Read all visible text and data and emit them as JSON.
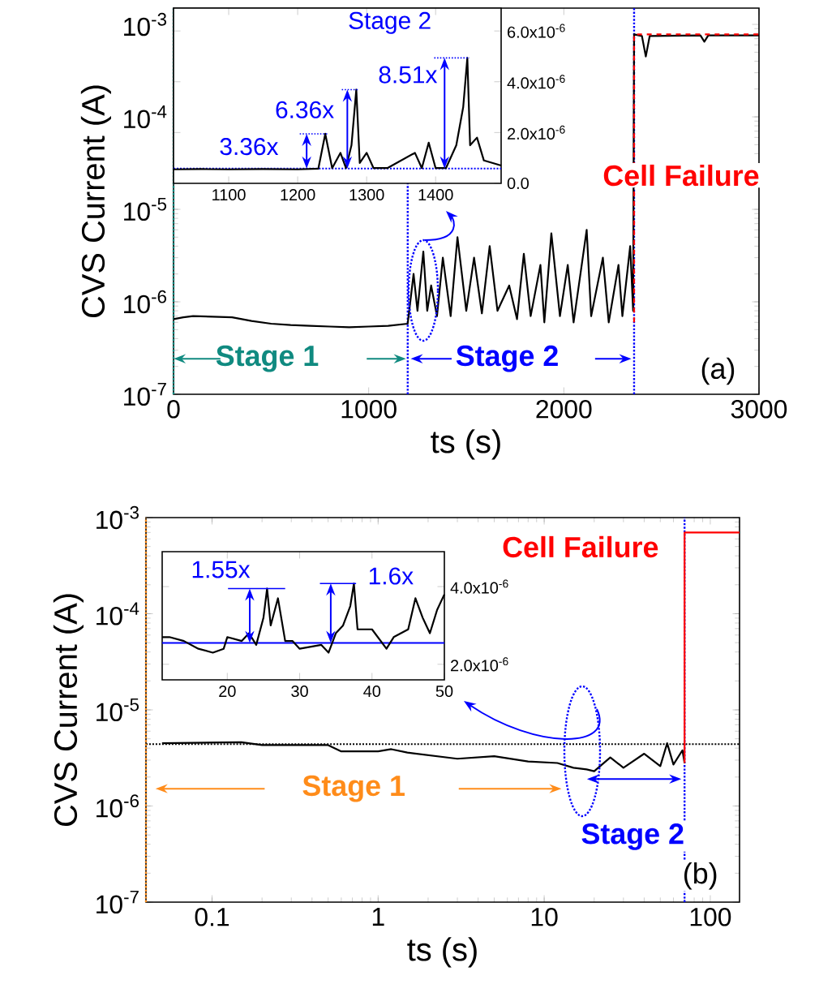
{
  "chart_data": [
    {
      "type": "line",
      "xlabel": "ts (s)",
      "ylabel": "CVS Current (A)",
      "log": "y",
      "xlim": [
        0,
        3000
      ],
      "ylim": [
        1e-07,
        0.0015
      ],
      "xticks": [
        0,
        1000,
        2000,
        3000
      ],
      "yticks": [
        {
          "value": 1e-07,
          "label": "10$^{-7}$"
        },
        {
          "value": 1e-06,
          "label": "10$^{-6}$"
        },
        {
          "value": 1e-05,
          "label": "10$^{-5}$"
        },
        {
          "value": 0.0001,
          "label": "10$^{-4}$"
        },
        {
          "value": 0.001,
          "label": "10$^{-3}$"
        }
      ],
      "series": [
        {
          "color": "#000000",
          "x": [
            0,
            50,
            100,
            200,
            300,
            400,
            500,
            600,
            700,
            800,
            900,
            1000,
            1100,
            1200,
            1230,
            1250,
            1280,
            1300,
            1320,
            1350,
            1380,
            1420,
            1455,
            1500,
            1540,
            1580,
            1620,
            1660,
            1720,
            1760,
            1795,
            1830,
            1880,
            1900,
            1936,
            1980,
            2020,
            2050,
            2117,
            2140,
            2200,
            2230,
            2280,
            2300,
            2340,
            2355,
            2360,
            2400,
            2420,
            2440,
            2700,
            2720,
            2740,
            3000
          ],
          "values": [
            6.5e-07,
            6.8e-07,
            7e-07,
            6.9e-07,
            6.8e-07,
            6.2e-07,
            5.8e-07,
            5.6e-07,
            5.5e-07,
            5.4e-07,
            5.3e-07,
            5.4e-07,
            5.5e-07,
            5.8e-07,
            2e-06,
            8e-07,
            3.5e-06,
            8e-07,
            1.5e-06,
            7e-07,
            3e-06,
            7e-07,
            5e-06,
            8e-07,
            3e-06,
            7.5e-07,
            4e-06,
            8e-07,
            1.5e-06,
            6.5e-07,
            3.3e-06,
            7e-07,
            2.5e-06,
            6e-07,
            5.5e-06,
            7e-07,
            2.5e-06,
            6e-07,
            6e-06,
            7e-07,
            3e-06,
            6e-07,
            2.5e-06,
            7e-07,
            4e-06,
            8e-07,
            0.00078,
            0.00075,
            0.00045,
            0.00075,
            0.00076,
            0.00065,
            0.00076,
            0.00076
          ]
        },
        {
          "color": "#ff0000",
          "line_style": "dashed",
          "x": [
            2360,
            2360,
            3000
          ],
          "values": [
            6e-07,
            0.00078,
            0.00078
          ]
        }
      ],
      "ref_lines": [
        {
          "axis": "x",
          "value": 0,
          "color": "#108a80",
          "line_style": "dotted"
        },
        {
          "axis": "x",
          "value": 1200,
          "color": "#0000ff",
          "line_style": "dotted"
        },
        {
          "axis": "x",
          "value": 2360,
          "color": "#0000ff",
          "line_style": "dotted"
        }
      ],
      "annotations": [
        "Stage 1",
        "Stage 2",
        "Cell Failure",
        "(a)"
      ]
    },
    {
      "type": "line",
      "xlim": [
        1020,
        1495
      ],
      "ylim": [
        0,
        6.9e-06
      ],
      "xticks": [
        1100,
        1200,
        1300,
        1400
      ],
      "yticks": [
        {
          "value": 0,
          "label": "0.0"
        },
        {
          "value": 2e-06,
          "label": "2.0x10$^{-6}$"
        },
        {
          "value": 4e-06,
          "label": "4.0x10$^{-6}$"
        },
        {
          "value": 6e-06,
          "label": "6.0x10$^{-6}$"
        }
      ],
      "series": [
        {
          "color": "#000000",
          "x": [
            1020,
            1060,
            1100,
            1150,
            1200,
            1230,
            1240,
            1250,
            1262,
            1270,
            1278,
            1285,
            1290,
            1300,
            1310,
            1330,
            1370,
            1380,
            1390,
            1400,
            1415,
            1430,
            1440,
            1446,
            1450,
            1460,
            1470,
            1495
          ],
          "values": [
            5.5e-07,
            5.6e-07,
            5.5e-07,
            5.6e-07,
            5.5e-07,
            5.8e-07,
            1.95e-06,
            6e-07,
            1.2e-06,
            6e-07,
            1.5e-06,
            3.69e-06,
            8e-07,
            1.2e-06,
            6e-07,
            6e-07,
            1.2e-06,
            6e-07,
            1.6e-06,
            6e-07,
            6e-07,
            1.5e-06,
            3e-06,
            4.94e-06,
            1.5e-06,
            1.8e-06,
            9e-07,
            7e-07
          ]
        }
      ],
      "ref_lines": [
        {
          "axis": "y",
          "value": 5.8e-07,
          "color": "#0000ff",
          "line_style": "dotted"
        }
      ],
      "title": "Stage 2",
      "annotations": [
        {
          "text": "3.36x",
          "x": 1240,
          "y": 1.95e-06
        },
        {
          "text": "6.36x",
          "x": 1285,
          "y": 3.69e-06
        },
        {
          "text": "8.51x",
          "x": 1446,
          "y": 4.94e-06
        }
      ]
    },
    {
      "type": "line",
      "xlabel": "ts (s)",
      "ylabel": "CVS Current (A)",
      "log": "xy",
      "xlim": [
        0.04,
        150
      ],
      "ylim": [
        1e-07,
        0.001
      ],
      "xticks": [
        0.1,
        1,
        10,
        100
      ],
      "yticks": [
        {
          "value": 1e-07,
          "label": "10$^{-7}$"
        },
        {
          "value": 1e-06,
          "label": "10$^{-6}$"
        },
        {
          "value": 1e-05,
          "label": "10$^{-5}$"
        },
        {
          "value": 0.0001,
          "label": "10$^{-4}$"
        },
        {
          "value": 0.001,
          "label": "10$^{-3}$"
        }
      ],
      "series": [
        {
          "color": "#000000",
          "x": [
            0.05,
            0.15,
            0.2,
            0.5,
            0.6,
            1,
            1.2,
            1.5,
            3,
            5,
            8,
            12,
            15,
            18,
            20,
            25,
            30,
            40,
            50,
            55,
            60,
            68,
            70
          ],
          "values": [
            4.5e-06,
            4.6e-06,
            4.3e-06,
            4.3e-06,
            3.7e-06,
            3.7e-06,
            3.9e-06,
            3.6e-06,
            3.1e-06,
            3.3e-06,
            2.9e-06,
            2.8e-06,
            2.5e-06,
            2.4e-06,
            2.3e-06,
            3.2e-06,
            2.5e-06,
            3.5e-06,
            2.6e-06,
            4.5e-06,
            2.7e-06,
            3.8e-06,
            2.8e-06
          ]
        },
        {
          "color": "#ff0000",
          "x": [
            70,
            70,
            150
          ],
          "values": [
            2.8e-06,
            0.0007,
            0.0007
          ]
        }
      ],
      "ref_lines": [
        {
          "axis": "y",
          "value": 4.4e-06,
          "color": "#000000",
          "line_style": "dotted"
        },
        {
          "axis": "x",
          "value": 0.04,
          "color": "#ff8c1a",
          "line_style": "dotted"
        },
        {
          "axis": "x",
          "value": 70,
          "color": "#0000ff",
          "line_style": "dotted"
        }
      ],
      "annotations": [
        "Stage 1",
        "Stage 2",
        "Cell Failure",
        "(b)"
      ]
    },
    {
      "type": "line",
      "xlim": [
        11,
        50
      ],
      "ylim": [
        1.6e-06,
        4.9e-06
      ],
      "xticks": [
        20,
        30,
        40,
        50
      ],
      "yticks": [
        {
          "value": 2e-06,
          "label": "2.0x10$^{-6}$"
        },
        {
          "value": 4e-06,
          "label": "4.0x10$^{-6}$"
        }
      ],
      "series": [
        {
          "color": "#000000",
          "x": [
            11,
            12,
            14,
            16,
            18,
            19.5,
            20,
            22,
            23,
            24,
            25,
            25.5,
            26,
            27,
            28,
            29,
            30,
            33,
            34,
            35,
            36,
            37,
            37.5,
            38,
            40,
            42,
            43,
            45,
            46,
            47,
            48,
            49,
            50
          ],
          "values": [
            2.7e-06,
            2.7e-06,
            2.6e-06,
            2.4e-06,
            2.3e-06,
            2.4e-06,
            2.7e-06,
            2.6e-06,
            2.8e-06,
            2.5e-06,
            3.2e-06,
            3.95e-06,
            3e-06,
            3.7e-06,
            2.6e-06,
            2.6e-06,
            2.4e-06,
            2.5e-06,
            2.3e-06,
            2.8e-06,
            3e-06,
            3.5e-06,
            4.08e-06,
            2.9e-06,
            2.9e-06,
            2.4e-06,
            2.7e-06,
            2.9e-06,
            3.7e-06,
            3.2e-06,
            2.8e-06,
            3.4e-06,
            3.8e-06
          ]
        }
      ],
      "ref_lines": [
        {
          "axis": "y",
          "value": 2.55e-06,
          "color": "#0000ff",
          "line_style": "solid"
        }
      ],
      "annotations": [
        {
          "text": "1.55x",
          "x": 25.5,
          "y": 3.95e-06
        },
        {
          "text": "1.6x",
          "x": 37.5,
          "y": 4.08e-06
        }
      ]
    }
  ]
}
